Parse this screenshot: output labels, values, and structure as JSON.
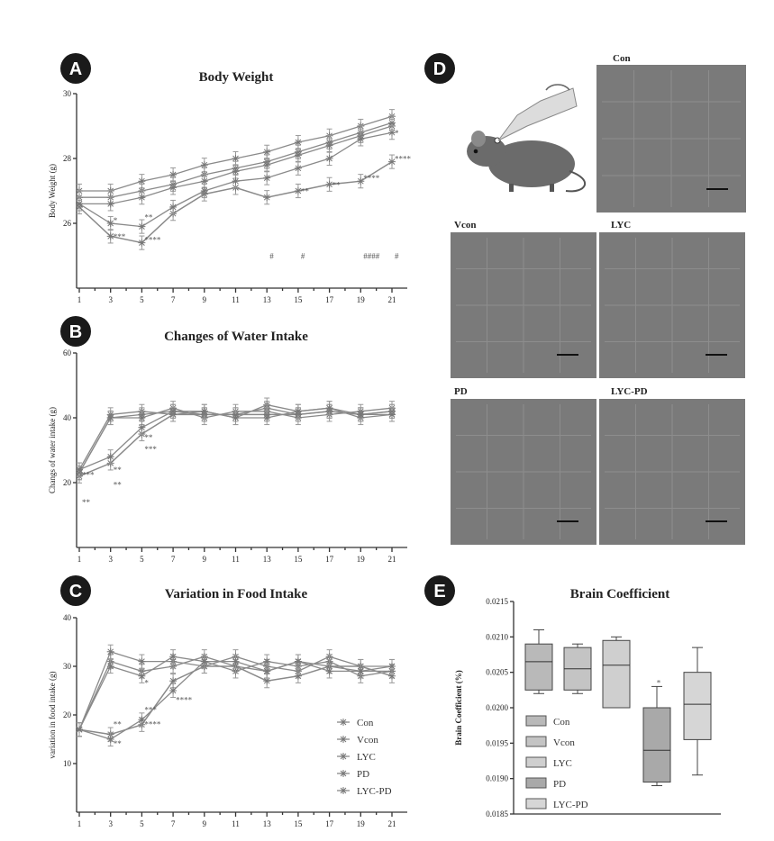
{
  "panels": {
    "A": {
      "badge": "A"
    },
    "B": {
      "badge": "B"
    },
    "C": {
      "badge": "C"
    },
    "D": {
      "badge": "D",
      "labels": [
        "Con",
        "Vcon",
        "LYC",
        "PD",
        "LYC-PD"
      ]
    },
    "E": {
      "badge": "E"
    }
  },
  "chart_data": [
    {
      "id": "A",
      "type": "line",
      "title": "Body Weight",
      "xlabel": "",
      "ylabel": "Body Weight (g)",
      "x": [
        1,
        3,
        5,
        7,
        9,
        11,
        13,
        15,
        17,
        19,
        21
      ],
      "xticks": [
        "1",
        "3",
        "5",
        "7",
        "9",
        "11",
        "13",
        "15",
        "17",
        "19",
        "21"
      ],
      "ylim": [
        24,
        30
      ],
      "yticks": [
        26,
        28,
        30
      ],
      "series": [
        {
          "name": "Con",
          "values": [
            27.0,
            27.0,
            27.3,
            27.5,
            27.8,
            28.0,
            28.2,
            28.5,
            28.7,
            29.0,
            29.3
          ]
        },
        {
          "name": "Vcon",
          "values": [
            26.8,
            26.8,
            27.0,
            27.2,
            27.5,
            27.7,
            27.9,
            28.2,
            28.5,
            28.8,
            29.1
          ]
        },
        {
          "name": "LYC",
          "values": [
            26.6,
            26.6,
            26.8,
            27.1,
            27.3,
            27.6,
            27.8,
            28.1,
            28.4,
            28.7,
            29.0
          ]
        },
        {
          "name": "PD",
          "values": [
            26.5,
            25.6,
            25.4,
            26.3,
            26.9,
            27.1,
            26.8,
            27.0,
            27.2,
            27.3,
            27.9
          ]
        },
        {
          "name": "LYC-PD",
          "values": [
            26.6,
            26.0,
            25.9,
            26.5,
            27.0,
            27.3,
            27.4,
            27.7,
            28.0,
            28.6,
            28.8
          ]
        }
      ],
      "annotations": [
        {
          "x": 3,
          "y": 25.5,
          "text": "***"
        },
        {
          "x": 5,
          "y": 25.4,
          "text": "****"
        },
        {
          "x": 3,
          "y": 26.0,
          "text": "*"
        },
        {
          "x": 5,
          "y": 26.1,
          "text": "**"
        },
        {
          "x": 13,
          "y": 24.9,
          "text": "#"
        },
        {
          "x": 15,
          "y": 24.9,
          "text": "#"
        },
        {
          "x": 19,
          "y": 24.9,
          "text": "####"
        },
        {
          "x": 21,
          "y": 24.9,
          "text": "#"
        },
        {
          "x": 15,
          "y": 26.9,
          "text": "**"
        },
        {
          "x": 17,
          "y": 27.1,
          "text": "**"
        },
        {
          "x": 19,
          "y": 27.3,
          "text": "****"
        },
        {
          "x": 21,
          "y": 27.9,
          "text": "****"
        },
        {
          "x": 21,
          "y": 28.7,
          "text": "*"
        }
      ]
    },
    {
      "id": "B",
      "type": "line",
      "title": "Changes of Water Intake",
      "xlabel": "",
      "ylabel": "Changs of water intake (g)",
      "x": [
        1,
        3,
        5,
        7,
        9,
        11,
        13,
        15,
        17,
        19,
        21
      ],
      "xticks": [
        "1",
        "3",
        "5",
        "7",
        "9",
        "11",
        "13",
        "15",
        "17",
        "19",
        "21"
      ],
      "ylim": [
        0,
        60
      ],
      "yticks": [
        20,
        40,
        60
      ],
      "series": [
        {
          "name": "Con",
          "values": [
            23,
            40,
            41,
            42,
            41,
            41,
            43,
            41,
            42,
            41,
            42
          ]
        },
        {
          "name": "Vcon",
          "values": [
            24,
            41,
            42,
            41,
            42,
            40,
            44,
            42,
            43,
            40,
            41
          ]
        },
        {
          "name": "LYC",
          "values": [
            23,
            40,
            40,
            43,
            40,
            42,
            42,
            40,
            41,
            42,
            43
          ]
        },
        {
          "name": "PD",
          "values": [
            22,
            26,
            35,
            41,
            41,
            41,
            41,
            41,
            42,
            41,
            42
          ]
        },
        {
          "name": "LYC-PD",
          "values": [
            24,
            28,
            37,
            42,
            42,
            40,
            40,
            42,
            43,
            41,
            41
          ]
        }
      ],
      "annotations": [
        {
          "x": 1,
          "y": 21.5,
          "text": "***"
        },
        {
          "x": 1,
          "y": 13,
          "text": "**"
        },
        {
          "x": 3,
          "y": 23,
          "text": "**"
        },
        {
          "x": 3,
          "y": 18.5,
          "text": "**"
        },
        {
          "x": 5,
          "y": 33,
          "text": "**"
        },
        {
          "x": 5,
          "y": 29.5,
          "text": "***"
        }
      ]
    },
    {
      "id": "C",
      "type": "line",
      "title": "Variation in Food Intake",
      "xlabel": "",
      "ylabel": "variation in food intake (g)",
      "x": [
        1,
        3,
        5,
        7,
        9,
        11,
        13,
        15,
        17,
        19,
        21
      ],
      "xticks": [
        "1",
        "3",
        "5",
        "7",
        "9",
        "11",
        "13",
        "15",
        "17",
        "19",
        "21"
      ],
      "ylim": [
        0,
        40
      ],
      "yticks": [
        10,
        20,
        30,
        40
      ],
      "series": [
        {
          "name": "Con",
          "values": [
            17,
            31,
            29,
            30,
            32,
            30,
            29,
            31,
            30,
            29,
            29
          ]
        },
        {
          "name": "Vcon",
          "values": [
            17,
            33,
            31,
            31,
            30,
            32,
            30,
            29,
            32,
            30,
            30
          ]
        },
        {
          "name": "LYC",
          "values": [
            17,
            30,
            28,
            32,
            31,
            29,
            31,
            30,
            31,
            28,
            29
          ]
        },
        {
          "name": "PD",
          "values": [
            17,
            16,
            18,
            27,
            30,
            30,
            27,
            28,
            30,
            30,
            28
          ]
        },
        {
          "name": "LYC-PD",
          "values": [
            17,
            15,
            19,
            25,
            31,
            31,
            29,
            31,
            29,
            29,
            30
          ]
        }
      ],
      "annotations": [
        {
          "x": 3,
          "y": 17.5,
          "text": "**"
        },
        {
          "x": 3,
          "y": 13.5,
          "text": "**"
        },
        {
          "x": 5,
          "y": 20.5,
          "text": "***"
        },
        {
          "x": 5,
          "y": 17.5,
          "text": "****"
        },
        {
          "x": 7,
          "y": 22.5,
          "text": "****"
        },
        {
          "x": 5,
          "y": 26,
          "text": "*"
        }
      ],
      "legend": {
        "placement": "bottom-right",
        "items": [
          "Con",
          "Vcon",
          "LYC",
          "PD",
          "LYC-PD"
        ]
      }
    },
    {
      "id": "E",
      "type": "box",
      "title": "Brain Coefficient",
      "xlabel": "",
      "ylabel": "Brain Coefficient (%)",
      "ylim": [
        0.0185,
        0.0215
      ],
      "yticks": [
        "0.0185",
        "0.0190",
        "0.0195",
        "0.0200",
        "0.0205",
        "0.0210",
        "0.0215"
      ],
      "boxes": [
        {
          "name": "Con",
          "min": 0.0202,
          "q1": 0.02025,
          "median": 0.02065,
          "q3": 0.0209,
          "max": 0.0211
        },
        {
          "name": "Vcon",
          "min": 0.0202,
          "q1": 0.02025,
          "median": 0.02055,
          "q3": 0.02085,
          "max": 0.0209
        },
        {
          "name": "LYC",
          "min": 0.02,
          "q1": 0.02,
          "median": 0.0206,
          "q3": 0.02095,
          "max": 0.021
        },
        {
          "name": "PD",
          "min": 0.0189,
          "q1": 0.01895,
          "median": 0.0194,
          "q3": 0.02,
          "max": 0.0203
        },
        {
          "name": "LYC-PD",
          "min": 0.01905,
          "q1": 0.01955,
          "median": 0.02005,
          "q3": 0.0205,
          "max": 0.02085
        }
      ],
      "annotations": [
        {
          "box": "PD",
          "text": "*"
        }
      ],
      "legend": {
        "placement": "bottom-left",
        "items": [
          "Con",
          "Vcon",
          "LYC",
          "PD",
          "LYC-PD"
        ]
      }
    }
  ]
}
